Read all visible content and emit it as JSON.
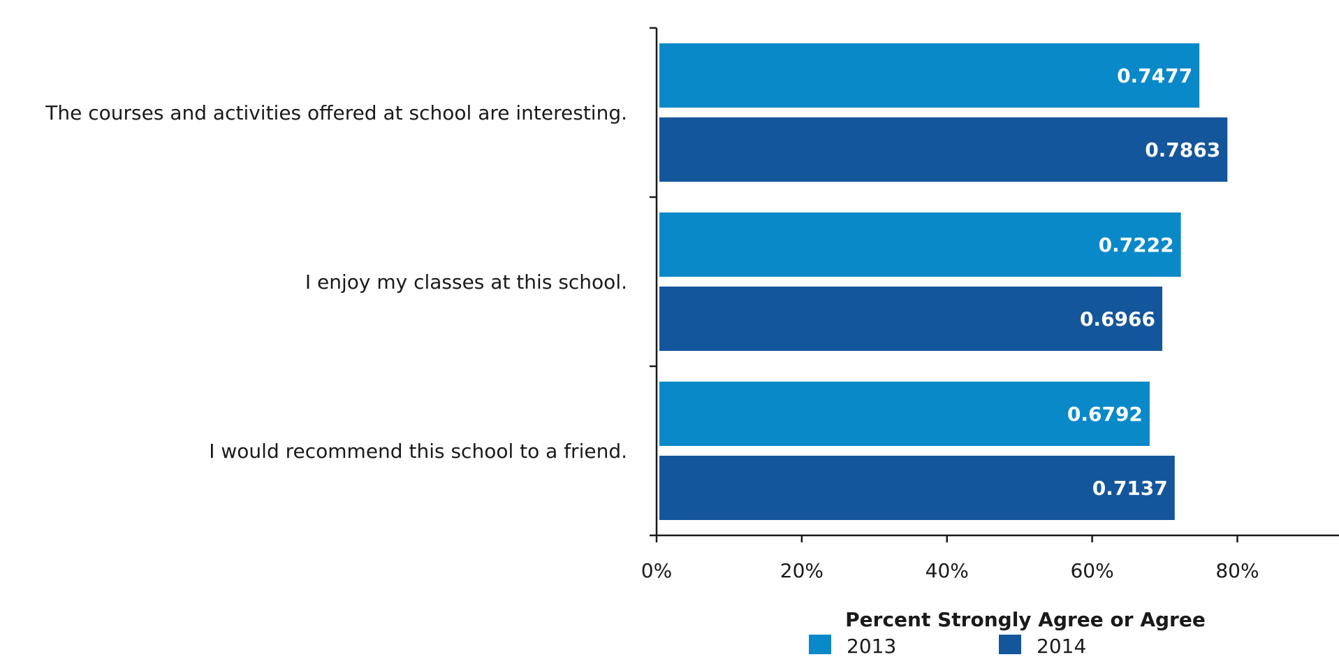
{
  "chart_data": {
    "type": "bar",
    "orientation": "horizontal",
    "categories": [
      "The courses and activities offered at school are interesting.",
      "I enjoy my classes at this school.",
      "I would recommend this school to a friend."
    ],
    "series": [
      {
        "name": "2013",
        "color": "#0a89c9",
        "values": [
          0.7477,
          0.7222,
          0.6792
        ],
        "labels": [
          "0.7477",
          "0.7222",
          "0.6792"
        ]
      },
      {
        "name": "2014",
        "color": "#14569b",
        "values": [
          0.7863,
          0.6966,
          0.7137
        ],
        "labels": [
          "0.7863",
          "0.6966",
          "0.7137"
        ]
      }
    ],
    "xlim": [
      0,
      0.94
    ],
    "x_ticks": [
      0,
      0.2,
      0.4,
      0.6,
      0.8
    ],
    "x_tick_labels": [
      "0%",
      "20%",
      "40%",
      "60%",
      "80%"
    ],
    "xlabel": "Percent Strongly Agree or Agree",
    "legend_position": "bottom",
    "grid": false
  }
}
